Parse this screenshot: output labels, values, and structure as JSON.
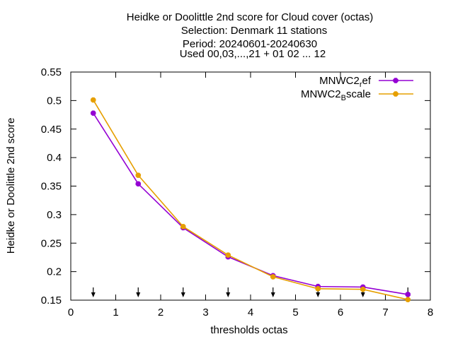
{
  "chart_data": {
    "type": "line",
    "title_lines": [
      "Heidke or Doolittle 2nd score  for Cloud cover (octas)",
      "Selection: Denmark     11 stations",
      "Period: 20240601-20240630",
      "Used 00,03,...,21 + 01 02 ... 12"
    ],
    "xlabel": "thresholds octas",
    "ylabel": "Heidke or Doolittle 2nd score",
    "xlim": [
      0,
      8
    ],
    "ylim": [
      0.15,
      0.55
    ],
    "xticks": [
      0,
      1,
      2,
      3,
      4,
      5,
      6,
      7,
      8
    ],
    "xtick_labels": [
      "0",
      "1",
      "2",
      "3",
      "4",
      "5",
      "6",
      "7",
      "8"
    ],
    "yticks": [
      0.15,
      0.2,
      0.25,
      0.3,
      0.35,
      0.4,
      0.45,
      0.5,
      0.55
    ],
    "ytick_labels": [
      "0.15",
      "0.2",
      "0.25",
      "0.3",
      "0.35",
      "0.4",
      "0.45",
      "0.5",
      "0.55"
    ],
    "grid": false,
    "legend_position": "top-right",
    "x": [
      0.5,
      1.5,
      2.5,
      3.5,
      4.5,
      5.5,
      6.5,
      7.5
    ],
    "series": [
      {
        "name": "MNWC2_ref",
        "legend_main": "MNWC2",
        "legend_sub": "r",
        "legend_rest": "ef",
        "color": "#9400d3",
        "values": [
          0.478,
          0.354,
          0.277,
          0.226,
          0.193,
          0.174,
          0.173,
          0.16
        ]
      },
      {
        "name": "MNWC2_Bscale",
        "legend_main": "MNWC2",
        "legend_sub": "B",
        "legend_rest": "scale",
        "color": "#e69f00",
        "values": [
          0.501,
          0.369,
          0.279,
          0.229,
          0.191,
          0.17,
          0.169,
          0.151
        ]
      }
    ],
    "arrows_x": [
      0.5,
      1.5,
      2.5,
      3.5,
      4.5,
      5.5,
      6.5,
      7.5
    ]
  }
}
